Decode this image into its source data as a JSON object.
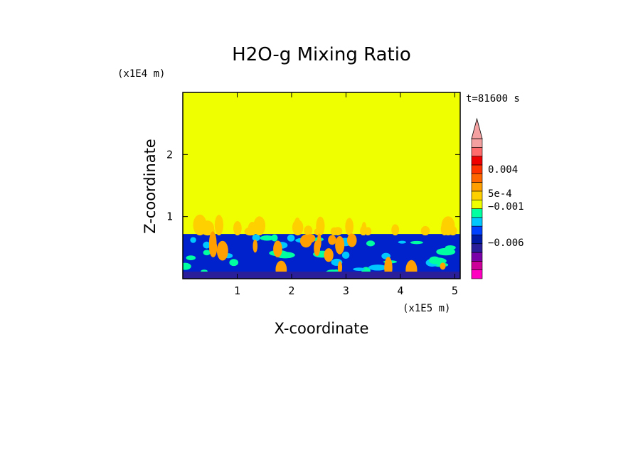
{
  "chart_data": {
    "type": "heatmap",
    "title": "H2O-g Mixing Ratio",
    "xlabel": "X-coordinate",
    "ylabel": "Z-coordinate",
    "x_unit": "(x1E5 m)",
    "y_unit": "(x1E4 m)",
    "time_label": "t=81600 s",
    "xlim": [
      0,
      5.1
    ],
    "ylim": [
      0,
      3
    ],
    "x_ticks": [
      "1",
      "2",
      "3",
      "4",
      "5"
    ],
    "y_ticks": [
      "1",
      "2"
    ],
    "regions": [
      {
        "name": "upper layer",
        "z_range": [
          0.72,
          3.0
        ],
        "color": "#f0ff00"
      },
      {
        "name": "turbulent boundary layer",
        "z_range": [
          0,
          0.72
        ],
        "color": "#0022cc"
      }
    ],
    "colorbar": {
      "levels": [
        "#ff00c0",
        "#cc0099",
        "#7a00a8",
        "#2a1e9a",
        "#001aa5",
        "#0040ff",
        "#00c8ff",
        "#00ffa0",
        "#f0ff00",
        "#ffd000",
        "#ffa000",
        "#ff6600",
        "#ff3300",
        "#ee0000",
        "#ff6b6b",
        "#f4a0a0"
      ],
      "tick_labels": [
        "0.004",
        "5e-4",
        "−0.001",
        "−0.006"
      ]
    }
  }
}
